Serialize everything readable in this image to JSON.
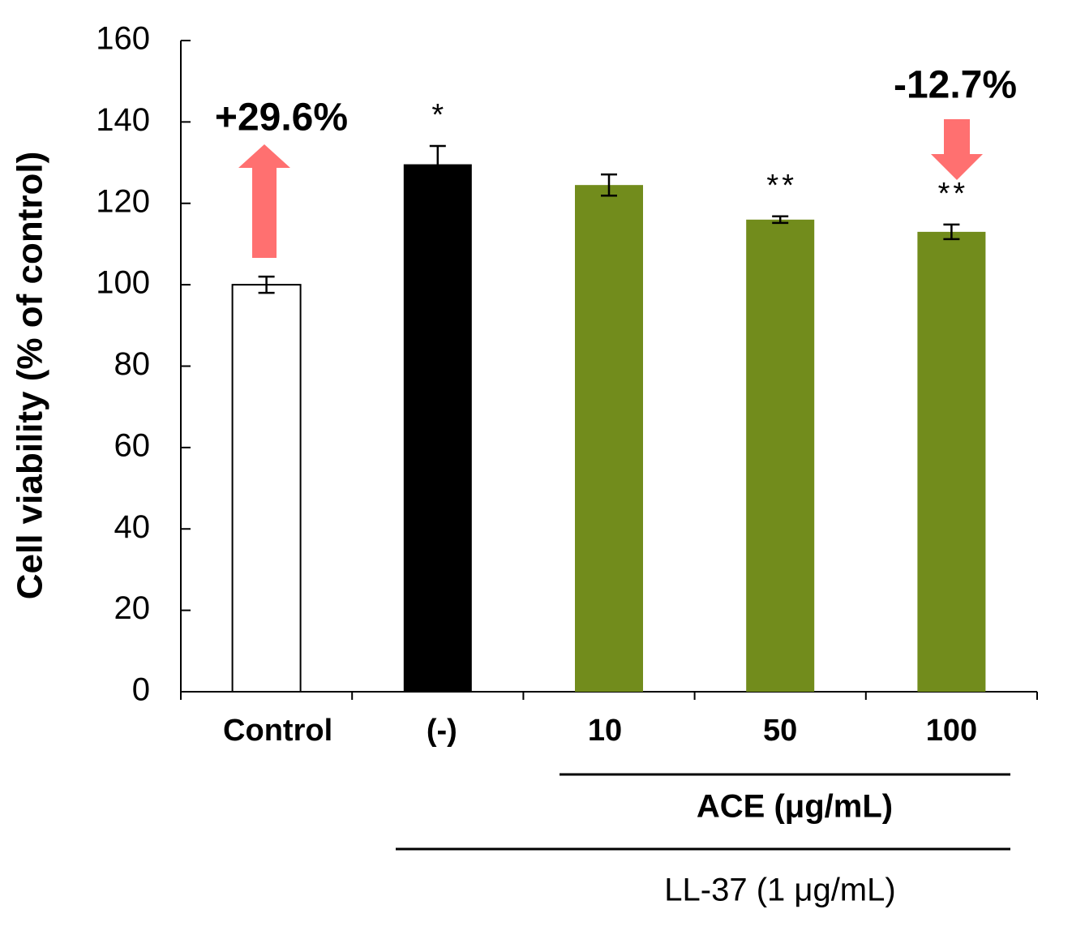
{
  "chart_data": {
    "type": "bar",
    "y_label": "Cell viability (% of control)",
    "categories": [
      "Control",
      "(-)",
      "10",
      "50",
      "100"
    ],
    "values": [
      100,
      129.6,
      124.5,
      116,
      113
    ],
    "errors": [
      2,
      4.5,
      2.6,
      0.8,
      1.8
    ],
    "colors": [
      "#ffffff",
      "#000000",
      "#728c1c",
      "#728c1c",
      "#728c1c"
    ],
    "significance": [
      null,
      "*",
      null,
      "**",
      "**"
    ],
    "annotations": [
      "+29.6%",
      "-12.7%"
    ],
    "groups": [
      {
        "label": "ACE (μg/mL)",
        "color": "#7cb82f"
      },
      {
        "label": "LL-37 (1 μg/mL)",
        "color": "#000000"
      }
    ],
    "ylim": [
      0,
      160
    ],
    "yticks": [
      0,
      20,
      40,
      60,
      80,
      100,
      120,
      140,
      160
    ],
    "grid": false
  }
}
